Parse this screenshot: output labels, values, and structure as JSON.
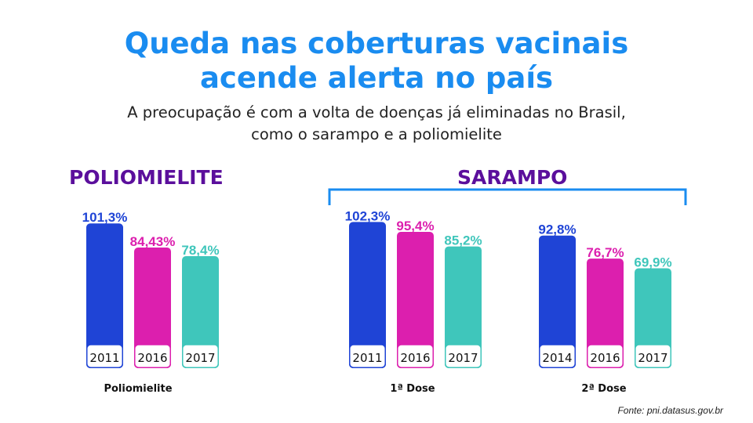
{
  "title": {
    "line1": "Queda nas coberturas vacinais",
    "line2": "acende alerta no país"
  },
  "subtitle": {
    "line1": "A preocupação é com a volta de doenças já eliminadas no Brasil,",
    "line2": "como o sarampo e a poliomielite"
  },
  "sections": {
    "polio_title": "POLIOMIELITE",
    "sarampo_title": "SARAMPO"
  },
  "source": "Fonte: pni.datasus.gov.br",
  "colors": {
    "blue": "#1f44d6",
    "magenta": "#dc1fae",
    "teal": "#3fc6bb",
    "title": "#1a8cf0",
    "section": "#5b0f9c",
    "bracket": "#1a8cf0"
  },
  "chart_data": [
    {
      "type": "bar",
      "group": "Poliomielite",
      "categories": [
        "2011",
        "2016",
        "2017"
      ],
      "values": [
        101.3,
        84.43,
        78.4
      ],
      "value_labels": [
        "101,3%",
        "84,43%",
        "78,4%"
      ]
    },
    {
      "type": "bar",
      "group": "1ª Dose",
      "categories": [
        "2011",
        "2016",
        "2017"
      ],
      "values": [
        102.3,
        95.4,
        85.2
      ],
      "value_labels": [
        "102,3%",
        "95,4%",
        "85,2%"
      ]
    },
    {
      "type": "bar",
      "group": "2ª Dose",
      "categories": [
        "2014",
        "2016",
        "2017"
      ],
      "values": [
        92.8,
        76.7,
        69.9
      ],
      "value_labels": [
        "92,8%",
        "76,7%",
        "69,9%"
      ]
    }
  ]
}
